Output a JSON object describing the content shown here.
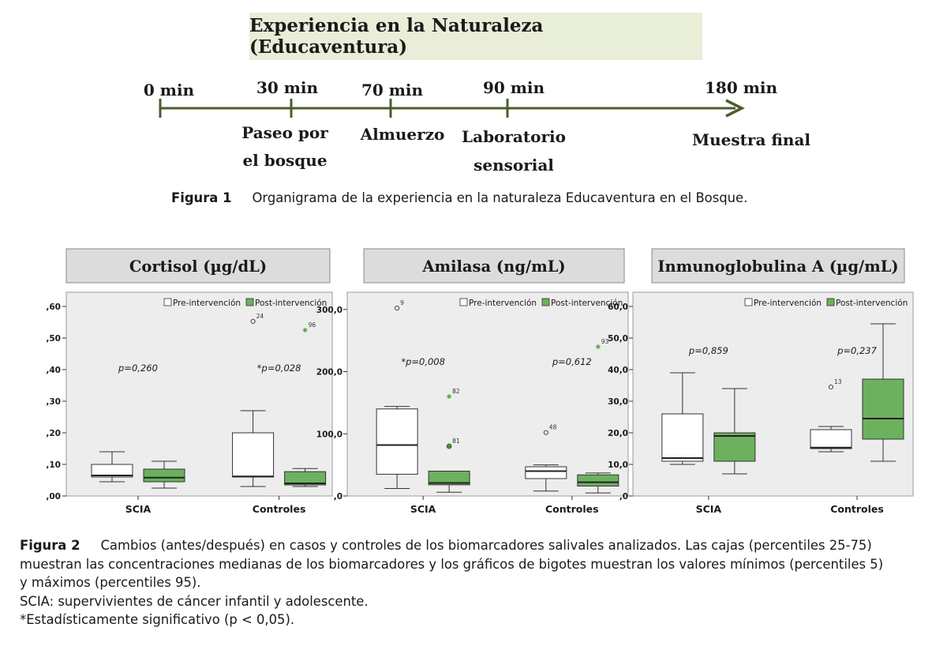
{
  "figure1": {
    "title": "Experiencia en la Naturaleza (Educaventura)",
    "timeline": [
      {
        "time": "0 min",
        "activity": []
      },
      {
        "time": "30 min",
        "activity": [
          "Paseo por",
          "el bosque"
        ]
      },
      {
        "time": "70 min",
        "activity": [
          "Almuerzo"
        ]
      },
      {
        "time": "90 min",
        "activity": [
          "Laboratorio",
          "sensorial"
        ]
      },
      {
        "time": "180 min",
        "activity": [
          "Muestra final"
        ]
      }
    ],
    "caption_label": "Figura 1",
    "caption_text": "Organigrama de la experiencia en la naturaleza Educaventura en el Bosque.",
    "colors": {
      "title_bg": "#e8eed8",
      "axis": "#4a5e2c"
    }
  },
  "chart_data": [
    {
      "type": "box",
      "title": "Cortisol (µg/dL)",
      "categories": [
        "SCIA",
        "Controles"
      ],
      "legend": [
        "Pre-intervención",
        "Post-intervención"
      ],
      "legend_position": "top-right",
      "ylim": [
        0,
        0.62
      ],
      "yticks": [
        ",00",
        ",10",
        ",20",
        ",30",
        ",40",
        ",50",
        ",60"
      ],
      "yticks_values": [
        0,
        0.1,
        0.2,
        0.3,
        0.4,
        0.5,
        0.6
      ],
      "series": [
        {
          "name": "Pre-intervención",
          "color": "#ffffff",
          "boxes": [
            {
              "min": 0.045,
              "q1": 0.06,
              "median": 0.065,
              "q3": 0.1,
              "max": 0.14
            },
            {
              "min": 0.03,
              "q1": 0.06,
              "median": 0.062,
              "q3": 0.2,
              "max": 0.27
            }
          ]
        },
        {
          "name": "Post-intervención",
          "color": "#6db15e",
          "boxes": [
            {
              "min": 0.025,
              "q1": 0.045,
              "median": 0.058,
              "q3": 0.085,
              "max": 0.11
            },
            {
              "min": 0.03,
              "q1": 0.035,
              "median": 0.04,
              "q3": 0.077,
              "max": 0.087
            }
          ]
        }
      ],
      "outliers": [
        {
          "category": 1,
          "series": 0,
          "y": 0.553,
          "label": "24",
          "marker": "circle"
        },
        {
          "category": 1,
          "series": 1,
          "y": 0.525,
          "label": "96",
          "marker": "star"
        }
      ],
      "pvalues": [
        {
          "category": 0,
          "text": "p=0,260",
          "y": 0.395
        },
        {
          "category": 1,
          "text": "*p=0,028",
          "y": 0.395
        }
      ]
    },
    {
      "type": "box",
      "title": "Amilasa (ng/mL)",
      "categories": [
        "SCIA",
        "Controles"
      ],
      "legend": [
        "Pre-intervención",
        "Post-intervención"
      ],
      "legend_position": "top-right",
      "ylim": [
        0,
        315
      ],
      "yticks": [
        ",0",
        "100,0",
        "200,0",
        "300,0"
      ],
      "yticks_values": [
        0,
        100,
        200,
        300
      ],
      "series": [
        {
          "name": "Pre-intervención",
          "color": "#ffffff",
          "boxes": [
            {
              "min": 12,
              "q1": 35,
              "median": 82,
              "q3": 140,
              "max": 144
            },
            {
              "min": 8,
              "q1": 28,
              "median": 40,
              "q3": 47,
              "max": 50
            }
          ]
        },
        {
          "name": "Post-intervención",
          "color": "#6db15e",
          "boxes": [
            {
              "min": 6,
              "q1": 18,
              "median": 21,
              "q3": 40,
              "max": 40
            },
            {
              "min": 5,
              "q1": 16,
              "median": 22,
              "q3": 34,
              "max": 37
            }
          ]
        }
      ],
      "outliers": [
        {
          "category": 0,
          "series": 0,
          "y": 302,
          "label": "9",
          "marker": "circle"
        },
        {
          "category": 0,
          "series": 1,
          "y": 160,
          "label": "82",
          "marker": "star"
        },
        {
          "category": 0,
          "series": 1,
          "y": 80,
          "label": "81",
          "marker": "filled"
        },
        {
          "category": 1,
          "series": 0,
          "y": 102,
          "label": "48",
          "marker": "circle"
        },
        {
          "category": 1,
          "series": 1,
          "y": 240,
          "label": "93",
          "marker": "star"
        }
      ],
      "pvalues": [
        {
          "category": 0,
          "text": "*p=0,008",
          "y": 211
        },
        {
          "category": 1,
          "text": "p=0,612",
          "y": 211
        }
      ]
    },
    {
      "type": "box",
      "title": "Inmunoglobulina A  (µg/mL)",
      "categories": [
        "SCIA",
        "Controles"
      ],
      "legend": [
        "Pre-intervención",
        "Post-intervención"
      ],
      "legend_position": "top-right",
      "ylim": [
        0,
        62
      ],
      "yticks": [
        ",0",
        "10,0",
        "20,0",
        "30,0",
        "40,0",
        "50,0",
        "60,0"
      ],
      "yticks_values": [
        0,
        10,
        20,
        30,
        40,
        50,
        60
      ],
      "series": [
        {
          "name": "Pre-intervención",
          "color": "#ffffff",
          "boxes": [
            {
              "min": 10,
              "q1": 11,
              "median": 12,
              "q3": 26,
              "max": 39
            },
            {
              "min": 14,
              "q1": 15,
              "median": 15.3,
              "q3": 21,
              "max": 22
            }
          ]
        },
        {
          "name": "Post-intervención",
          "color": "#6db15e",
          "boxes": [
            {
              "min": 7,
              "q1": 11,
              "median": 19,
              "q3": 20,
              "max": 34
            },
            {
              "min": 11,
              "q1": 18,
              "median": 24.5,
              "q3": 37,
              "max": 54.5
            }
          ]
        }
      ],
      "outliers": [
        {
          "category": 1,
          "series": 0,
          "y": 34.5,
          "label": "13",
          "marker": "circle"
        }
      ],
      "pvalues": [
        {
          "category": 0,
          "text": "p=0,859",
          "y": 45
        },
        {
          "category": 1,
          "text": "p=0,237",
          "y": 45
        }
      ]
    }
  ],
  "figure2": {
    "caption_label": "Figura 2",
    "caption_lines": [
      "Cambios (antes/después) en casos y controles de los biomarcadores salivales analizados. Las cajas (percentiles 25-75)",
      "muestran las concentraciones medianas de los biomarcadores y los gráficos de bigotes muestran los valores mínimos (percentiles 5)",
      "y máximos (percentiles 95).",
      "SCIA: supervivientes de cáncer infantil y adolescente.",
      "*Estadísticamente significativo (p < 0,05)."
    ]
  }
}
